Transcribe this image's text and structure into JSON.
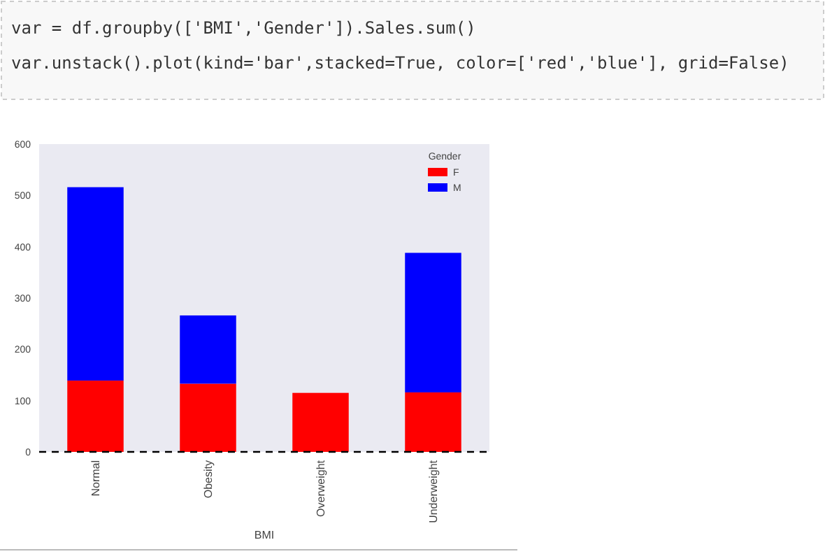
{
  "chart_data": {
    "type": "bar",
    "stacked": true,
    "xlabel": "BMI",
    "legend_title": "Gender",
    "legend": "top right",
    "categories": [
      "Normal",
      "Obesity",
      "Overweight",
      "Underweight"
    ],
    "series": [
      {
        "name": "F",
        "color": "#ff0000",
        "values": [
          139,
          133,
          115,
          116
        ]
      },
      {
        "name": "M",
        "color": "#0000ff",
        "values": [
          377,
          133,
          null,
          272
        ]
      }
    ],
    "ylim": [
      0,
      600
    ],
    "yticks": [
      0,
      100,
      200,
      300,
      400,
      500,
      600
    ],
    "ref_lines": [
      {
        "axis": "y",
        "value": 0,
        "color": "#000000",
        "line_style": "dashed"
      }
    ],
    "annotations": [
      "var = df.groupby(['BMI','Gender']).Sales.sum()",
      "var.unstack().plot(kind='bar',stacked=True,  color=['red','blue'], grid=False)"
    ]
  }
}
